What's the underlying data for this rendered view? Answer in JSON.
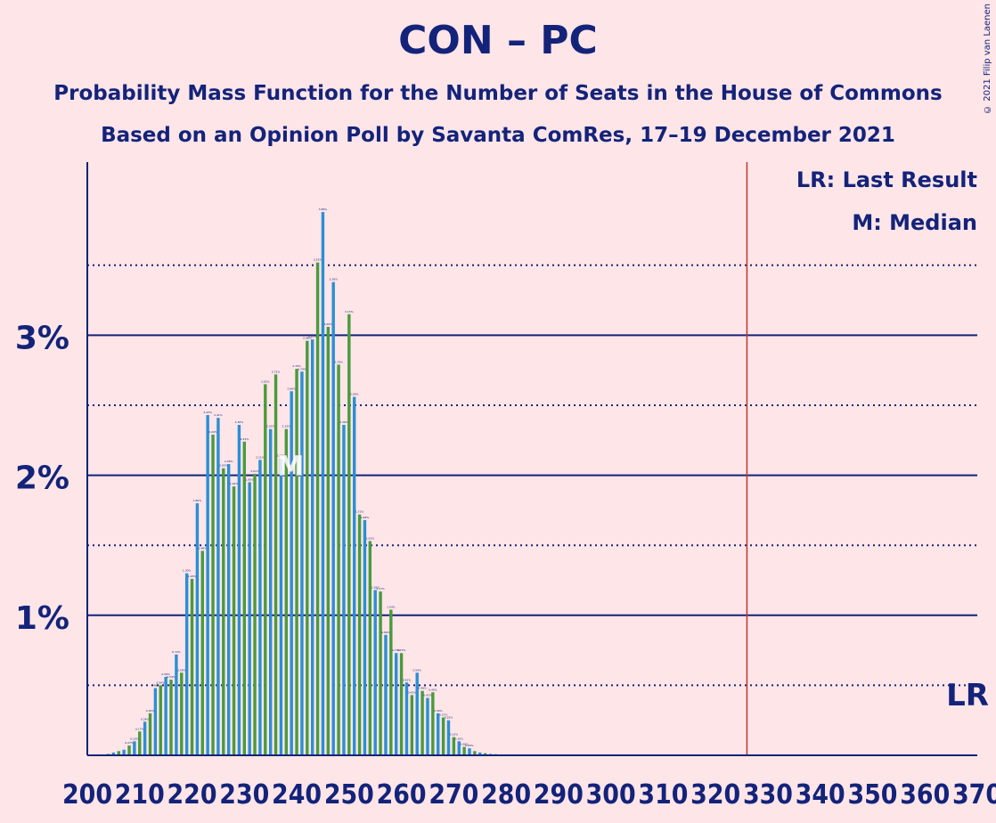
{
  "chart_data": {
    "type": "bar",
    "title": "CON – PC",
    "subtitle": "Probability Mass Function for the Number of Seats in the House of Commons",
    "subtitle2": "Based on an Opinion Poll by Savanta ComRes, 17–19 December 2021",
    "copyright": "© 2021 Filip van Laenen",
    "legend": {
      "lr": "LR: Last Result",
      "m": "M: Median",
      "position": "top-right"
    },
    "last_result": {
      "seat": 326,
      "label": "LR",
      "color": "#c0392b"
    },
    "median": {
      "seat": 239,
      "label": "M"
    },
    "xlim": [
      200,
      370
    ],
    "x_ticks": [
      200,
      210,
      220,
      230,
      240,
      250,
      260,
      270,
      280,
      290,
      300,
      310,
      320,
      330,
      340,
      350,
      360,
      370
    ],
    "ylim": [
      0,
      4.2
    ],
    "y_ticks_major": [
      1,
      2,
      3
    ],
    "y_tick_labels": [
      "1%",
      "2%",
      "3%"
    ],
    "y_ticks_minor": [
      0.5,
      1.5,
      2.5,
      3.5
    ],
    "grid": true,
    "colors": {
      "blue": "#2b8fd4",
      "green": "#4a9a3c",
      "axis": "#14237a",
      "text": "#14237a"
    },
    "seats": [
      201,
      202,
      203,
      204,
      205,
      206,
      207,
      208,
      209,
      210,
      211,
      212,
      213,
      214,
      215,
      216,
      217,
      218,
      219,
      220,
      221,
      222,
      223,
      224,
      225,
      226,
      227,
      228,
      229,
      230,
      231,
      232,
      233,
      234,
      235,
      236,
      237,
      238,
      239,
      240,
      241,
      242,
      243,
      244,
      245,
      246,
      247,
      248,
      249,
      250,
      251,
      252,
      253,
      254,
      255,
      256,
      257,
      258,
      259,
      260,
      261,
      262,
      263,
      264,
      265,
      266,
      267,
      268,
      269,
      270,
      271,
      272,
      273,
      274,
      275,
      276,
      277,
      278,
      279,
      280
    ],
    "values": [
      0.002,
      0.004,
      0.006,
      0.01,
      0.02,
      0.03,
      0.04,
      0.07,
      0.1,
      0.17,
      0.24,
      0.3,
      0.48,
      0.5,
      0.56,
      0.54,
      0.72,
      0.59,
      1.3,
      1.26,
      1.8,
      1.46,
      2.43,
      2.29,
      2.41,
      2.05,
      2.08,
      1.92,
      2.36,
      2.24,
      1.95,
      2.01,
      2.11,
      2.65,
      2.33,
      2.72,
      2.12,
      2.33,
      2.6,
      2.76,
      2.74,
      2.96,
      2.97,
      3.52,
      3.88,
      3.06,
      3.38,
      2.79,
      2.36,
      3.15,
      2.56,
      1.72,
      1.68,
      1.53,
      1.18,
      1.17,
      0.86,
      1.04,
      0.73,
      0.73,
      0.52,
      0.43,
      0.59,
      0.46,
      0.41,
      0.45,
      0.3,
      0.27,
      0.25,
      0.13,
      0.1,
      0.06,
      0.05,
      0.03,
      0.02,
      0.015,
      0.01,
      0.008,
      0.005,
      0.003
    ]
  }
}
